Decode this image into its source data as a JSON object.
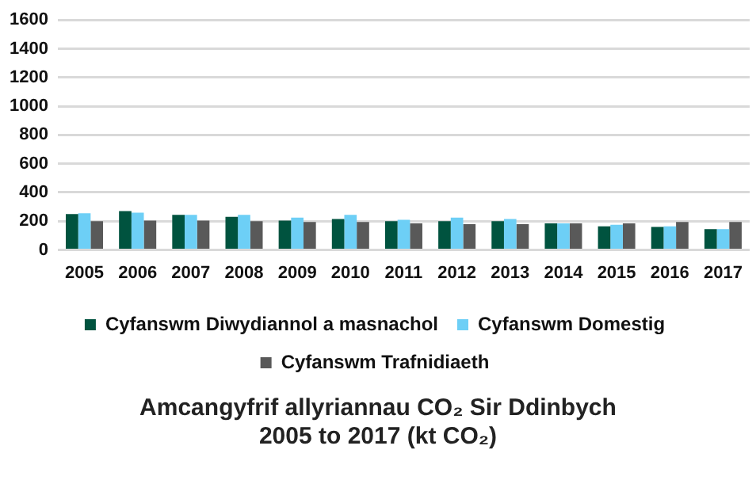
{
  "chart_data": {
    "type": "bar",
    "title": "Amcangyfrif allyriannau CO₂ Sir Ddinbych 2005 to 2017 (kt CO₂)",
    "categories": [
      "2005",
      "2006",
      "2007",
      "2008",
      "2009",
      "2010",
      "2011",
      "2012",
      "2013",
      "2014",
      "2015",
      "2016",
      "2017"
    ],
    "series": [
      {
        "name": "Cyfanswm Diwydiannol a masnachol",
        "color": "#00533f",
        "values": [
          250,
          270,
          245,
          230,
          205,
          215,
          200,
          200,
          200,
          185,
          165,
          160,
          145
        ]
      },
      {
        "name": "Cyfanswm Domestig",
        "color": "#6dcff6",
        "values": [
          255,
          260,
          245,
          245,
          225,
          245,
          210,
          225,
          215,
          185,
          175,
          165,
          145
        ]
      },
      {
        "name": "Cyfanswm Trafnidiaeth",
        "color": "#595959",
        "values": [
          200,
          205,
          205,
          200,
          195,
          195,
          185,
          180,
          180,
          185,
          185,
          195,
          195
        ]
      }
    ],
    "ylim": [
      0,
      1600
    ],
    "yticks": [
      0,
      200,
      400,
      600,
      800,
      1000,
      1200,
      1400,
      1600
    ],
    "grid": "y",
    "legend": "bottom"
  }
}
